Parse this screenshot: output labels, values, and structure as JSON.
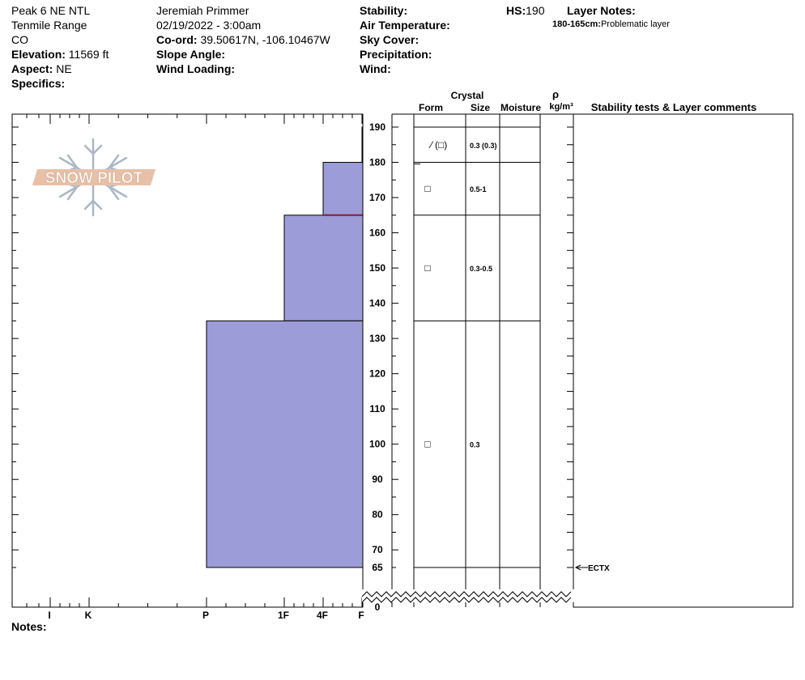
{
  "header": {
    "col1": {
      "location": "Peak 6 NE NTL",
      "range": "Tenmile Range",
      "state": "CO",
      "elevation_label": "Elevation:",
      "elevation_value": "11569 ft",
      "aspect_label": "Aspect:",
      "aspect_value": "NE",
      "specifics_label": "Specifics:"
    },
    "col2": {
      "observer": "Jeremiah Primmer",
      "datetime": "02/19/2022 - 3:00am",
      "coord_label": "Co-ord:",
      "coord_value": "39.50617N, -106.10467W",
      "slope_label": "Slope Angle:",
      "wind_loading_label": "Wind Loading:"
    },
    "col3": {
      "stability_label": "Stability:",
      "air_temp_label": "Air Temperature:",
      "sky_label": "Sky Cover:",
      "precip_label": "Precipitation:",
      "wind_label": "Wind:"
    },
    "hs_label": "HS:",
    "hs_value": "190",
    "layer_notes_label": "Layer Notes:",
    "layer_note_range": "180-165cm:",
    "layer_note_text": "Problematic layer"
  },
  "logo_text": "SNOW PILOT",
  "columns": {
    "crystal": "Crystal",
    "form": "Form",
    "size": "Size",
    "moisture": "Moisture",
    "rho": "ρ",
    "density_unit": "kg/m³",
    "stability": "Stability tests & Layer comments"
  },
  "hardness_scale": [
    {
      "code": "I",
      "index": 0
    },
    {
      "code": "K",
      "index": 1
    },
    {
      "code": "P",
      "index": 2
    },
    {
      "code": "1F",
      "index": 3
    },
    {
      "code": "4F",
      "index": 4
    },
    {
      "code": "F",
      "index": 5
    }
  ],
  "depth_ticks": [
    190,
    180,
    170,
    160,
    150,
    140,
    130,
    120,
    110,
    100,
    90,
    80,
    70,
    65,
    0
  ],
  "layers": [
    {
      "top": 190,
      "bottom": 180,
      "hardness_to": 5.0,
      "form": "⁄ (□)",
      "size": "0.3 (0.3)"
    },
    {
      "top": 180,
      "bottom": 165,
      "hardness_to": 4.0,
      "form": "□",
      "size": "0.5-1"
    },
    {
      "top": 165,
      "bottom": 135,
      "hardness_to": 3.0,
      "form": "□",
      "size": "0.3-0.5"
    },
    {
      "top": 135,
      "bottom": 65,
      "hardness_to": 2.0,
      "form": "□",
      "size": "0.3"
    }
  ],
  "stability_tests": [
    {
      "depth": 65,
      "label": "ECTX"
    }
  ],
  "problem_layer_depth": 165,
  "notes_label": "Notes:",
  "colors": {
    "layer_fill": "#9c9cd8",
    "problem_line": "#8b1a2b",
    "logo_orange": "#e8c0a8",
    "logo_blue": "#a9b7c6"
  }
}
